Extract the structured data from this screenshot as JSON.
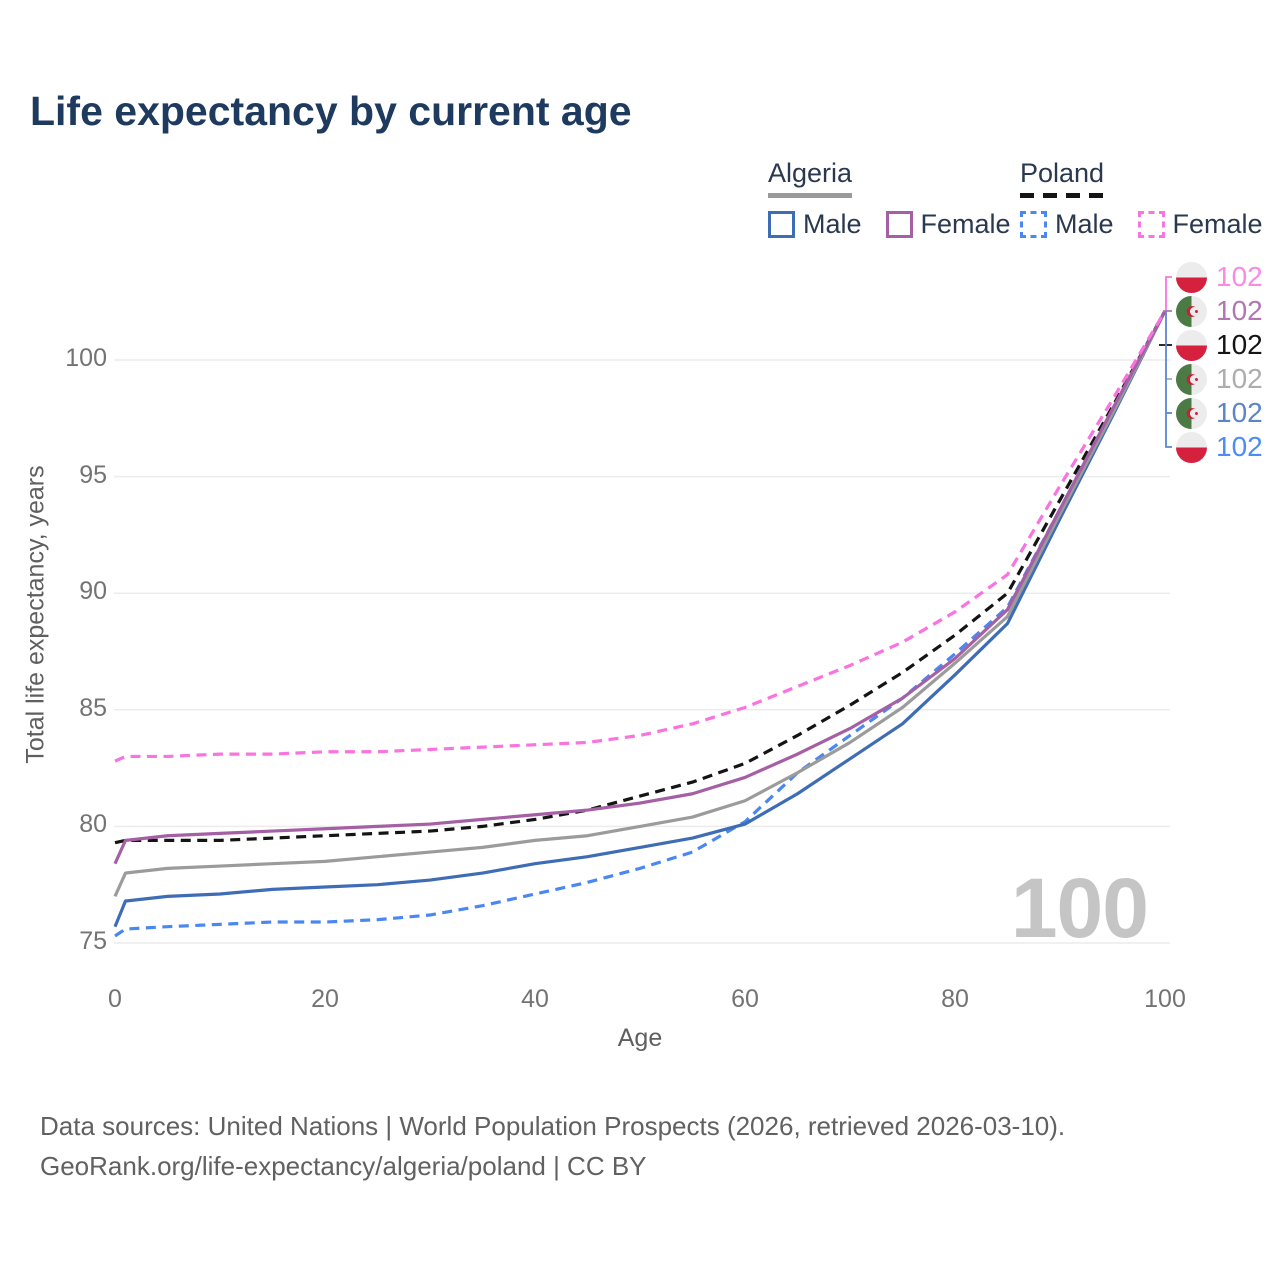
{
  "title": "Life expectancy by current age",
  "watermark": "100",
  "legend": {
    "groups": [
      {
        "country": "Algeria",
        "line_style": "solid",
        "underline_color": "#9a9a9a",
        "items": [
          {
            "label": "Male",
            "color": "#3e6db6"
          },
          {
            "label": "Female",
            "color": "#a55fa4"
          }
        ]
      },
      {
        "country": "Poland",
        "line_style": "dashed",
        "underline_color": "#141414",
        "items": [
          {
            "label": "Male",
            "color": "#4b87f2"
          },
          {
            "label": "Female",
            "color": "#f973e1"
          }
        ]
      }
    ]
  },
  "footer": {
    "line1": "Data sources: United Nations | World Population Prospects (2026, retrieved 2026-03-10).",
    "line2": "GeoRank.org/life-expectancy/algeria/poland | CC BY"
  },
  "chart_data": {
    "type": "line",
    "title": "Life expectancy by current age",
    "xlabel": "Age",
    "ylabel": "Total life expectancy, years",
    "xlim": [
      0,
      100
    ],
    "ylim": [
      74.5,
      102.5
    ],
    "x_ticks": [
      0,
      20,
      40,
      60,
      80,
      100
    ],
    "y_ticks": [
      75,
      80,
      85,
      90,
      95,
      100
    ],
    "grid": "horizontal",
    "legend_position": "top-right",
    "x": [
      0,
      1,
      5,
      10,
      15,
      20,
      25,
      30,
      35,
      40,
      45,
      50,
      55,
      60,
      65,
      70,
      75,
      80,
      85,
      90,
      95,
      100
    ],
    "series": [
      {
        "key": "poland-female",
        "name": "Poland Female",
        "country": "poland",
        "dash": true,
        "color": "#f973e1",
        "label_color": "#fb8ae6",
        "end_label": "102",
        "values": [
          82.8,
          83.0,
          83.0,
          83.1,
          83.1,
          83.2,
          83.2,
          83.3,
          83.4,
          83.5,
          83.6,
          83.9,
          84.4,
          85.1,
          86.0,
          86.9,
          87.9,
          89.2,
          90.8,
          94.6,
          98.3,
          102.1
        ]
      },
      {
        "key": "algeria-female",
        "name": "Algeria Female",
        "country": "algeria",
        "dash": false,
        "color": "#a55fa4",
        "label_color": "#b277b1",
        "end_label": "102",
        "values": [
          78.4,
          79.4,
          79.6,
          79.7,
          79.8,
          79.9,
          80.0,
          80.1,
          80.3,
          80.5,
          80.7,
          81.0,
          81.4,
          82.1,
          83.1,
          84.2,
          85.5,
          87.2,
          89.3,
          93.6,
          97.9,
          102.1
        ]
      },
      {
        "key": "poland-total",
        "name": "Poland (both sexes)",
        "country": "poland",
        "dash": true,
        "color": "#141414",
        "label_color": "#141414",
        "end_label": "102",
        "values": [
          79.3,
          79.4,
          79.4,
          79.4,
          79.5,
          79.6,
          79.7,
          79.8,
          80.0,
          80.3,
          80.7,
          81.3,
          81.9,
          82.7,
          83.9,
          85.2,
          86.6,
          88.2,
          90.0,
          94.0,
          98.0,
          102.1
        ]
      },
      {
        "key": "algeria-total",
        "name": "Algeria (both sexes)",
        "country": "algeria",
        "dash": false,
        "color": "#9b9b9b",
        "label_color": "#adadad",
        "end_label": "102",
        "values": [
          77.0,
          78.0,
          78.2,
          78.3,
          78.4,
          78.5,
          78.7,
          78.9,
          79.1,
          79.4,
          79.6,
          80.0,
          80.4,
          81.1,
          82.3,
          83.6,
          85.1,
          87.0,
          89.0,
          93.4,
          97.7,
          102.1
        ]
      },
      {
        "key": "algeria-male",
        "name": "Algeria Male",
        "country": "algeria",
        "dash": false,
        "color": "#3e6db6",
        "label_color": "#5c85c8",
        "end_label": "102",
        "values": [
          75.7,
          76.8,
          77.0,
          77.1,
          77.3,
          77.4,
          77.5,
          77.7,
          78.0,
          78.4,
          78.7,
          79.1,
          79.5,
          80.1,
          81.4,
          82.9,
          84.4,
          86.5,
          88.7,
          93.2,
          97.6,
          102.1
        ]
      },
      {
        "key": "poland-male",
        "name": "Poland Male",
        "country": "poland",
        "dash": true,
        "color": "#4b87f2",
        "label_color": "#4b8cf5",
        "end_label": "102",
        "values": [
          75.3,
          75.6,
          75.7,
          75.8,
          75.9,
          75.9,
          76.0,
          76.2,
          76.6,
          77.1,
          77.6,
          78.2,
          78.9,
          80.2,
          82.3,
          83.9,
          85.5,
          87.4,
          89.4,
          93.6,
          97.8,
          102.1
        ]
      }
    ]
  }
}
